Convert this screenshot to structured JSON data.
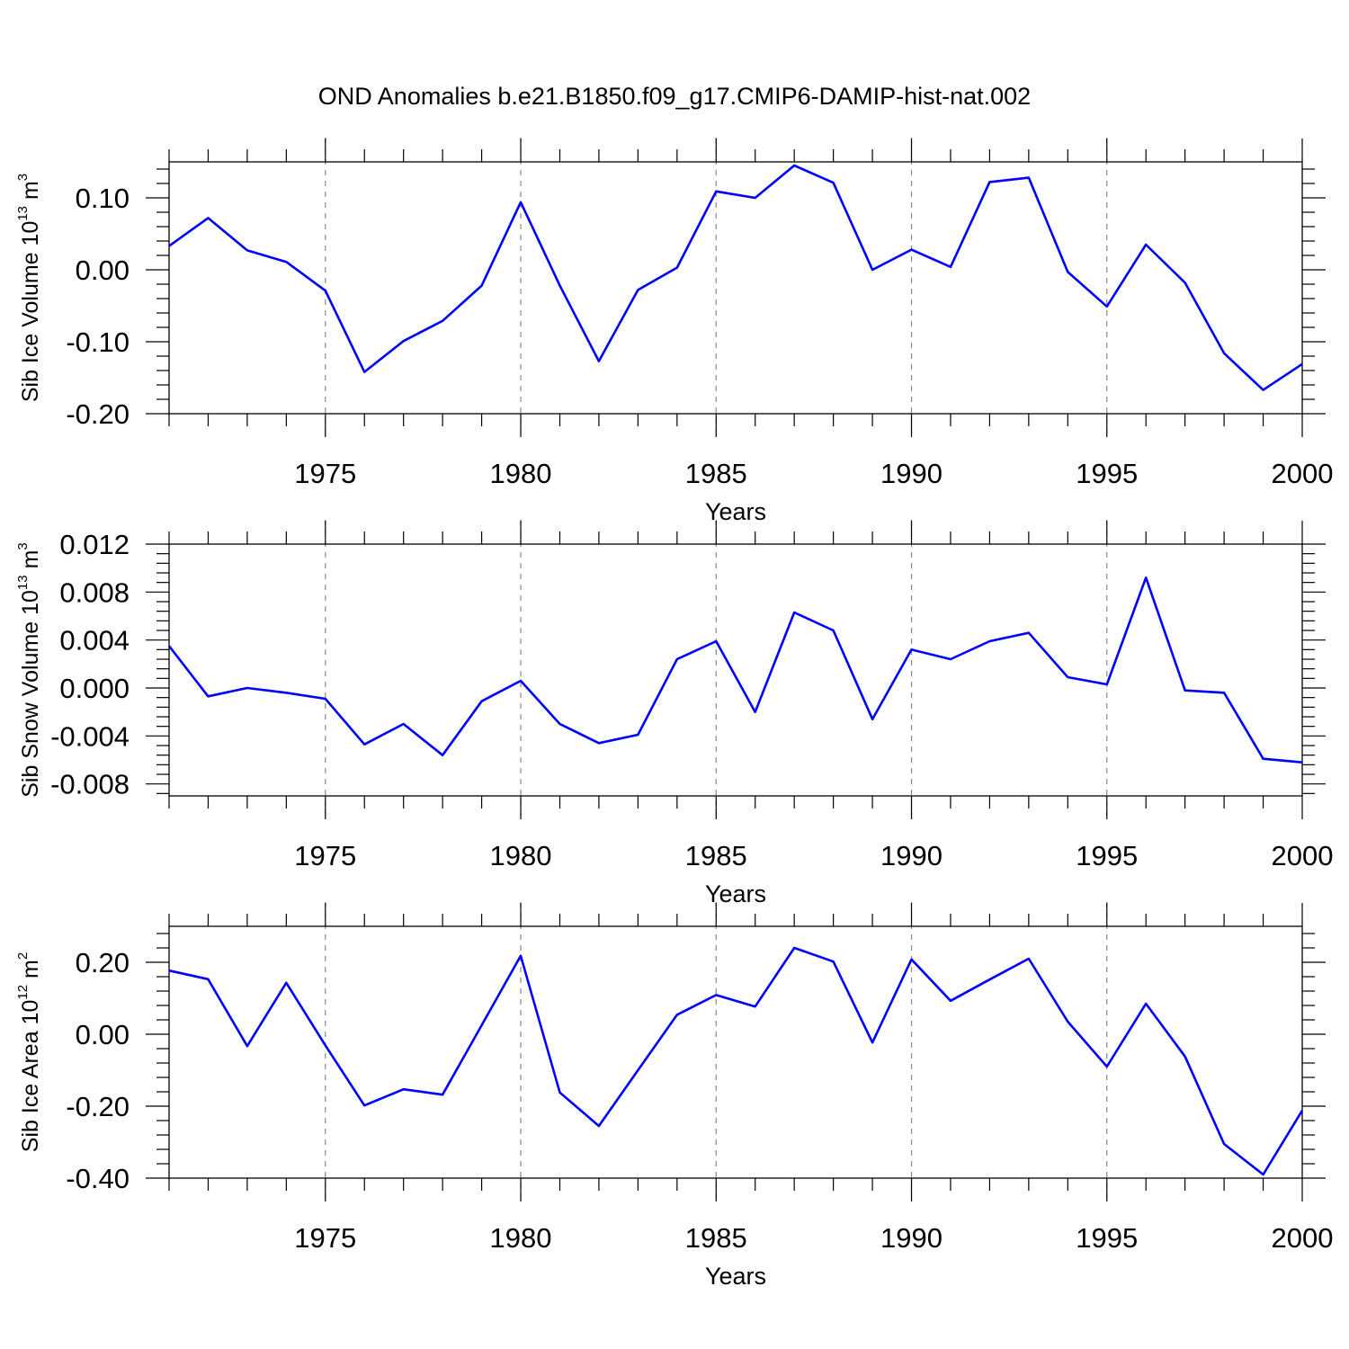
{
  "chart_data": [
    {
      "type": "line",
      "title": "OND Anomalies b.e21.B1850.f09_g17.CMIP6-DAMIP-hist-nat.002",
      "xlabel": "Years",
      "ylabel": "Sib Ice Volume 10",
      "ylabel_exp": "13",
      "ylabel_unit": " m",
      "ylabel_unit_exp": "3",
      "xlim": [
        1971,
        2000
      ],
      "ylim": [
        -0.2,
        0.15
      ],
      "x_ticks": [
        1975,
        1980,
        1985,
        1990,
        1995,
        2000
      ],
      "x_tick_labels": [
        "1975",
        "1980",
        "1985",
        "1990",
        "1995",
        "2000"
      ],
      "y_ticks": [
        0.1,
        0.0,
        -0.1,
        -0.2
      ],
      "y_tick_labels": [
        "0.10",
        "0.00",
        "-0.10",
        "-0.20"
      ],
      "grid": "x dashed",
      "color": "#0000ff",
      "x": [
        1971,
        1972,
        1973,
        1974,
        1975,
        1976,
        1977,
        1978,
        1979,
        1980,
        1981,
        1982,
        1983,
        1984,
        1985,
        1986,
        1987,
        1988,
        1989,
        1990,
        1991,
        1992,
        1993,
        1994,
        1995,
        1996,
        1997,
        1998,
        1999,
        2000
      ],
      "values": [
        0.033,
        0.072,
        0.027,
        0.011,
        -0.029,
        -0.142,
        -0.099,
        -0.071,
        -0.022,
        0.094,
        -0.022,
        -0.127,
        -0.028,
        0.003,
        0.109,
        0.1,
        0.145,
        0.121,
        0.0,
        0.028,
        0.004,
        0.122,
        0.128,
        -0.003,
        -0.051,
        0.035,
        -0.018,
        -0.116,
        -0.167,
        -0.131
      ]
    },
    {
      "type": "line",
      "xlabel": "Years",
      "ylabel": "Sib Snow Volume 10",
      "ylabel_exp": "13",
      "ylabel_unit": " m",
      "ylabel_unit_exp": "3",
      "xlim": [
        1971,
        2000
      ],
      "ylim": [
        -0.009,
        0.012
      ],
      "x_ticks": [
        1975,
        1980,
        1985,
        1990,
        1995,
        2000
      ],
      "x_tick_labels": [
        "1975",
        "1980",
        "1985",
        "1990",
        "1995",
        "2000"
      ],
      "y_ticks": [
        0.012,
        0.008,
        0.004,
        0.0,
        -0.004,
        -0.008
      ],
      "y_tick_labels": [
        "0.012",
        "0.008",
        "0.004",
        "0.000",
        "-0.004",
        "-0.008"
      ],
      "grid": "x dashed",
      "color": "#0000ff",
      "x": [
        1971,
        1972,
        1973,
        1974,
        1975,
        1976,
        1977,
        1978,
        1979,
        1980,
        1981,
        1982,
        1983,
        1984,
        1985,
        1986,
        1987,
        1988,
        1989,
        1990,
        1991,
        1992,
        1993,
        1994,
        1995,
        1996,
        1997,
        1998,
        1999,
        2000
      ],
      "values": [
        0.0035,
        -0.0007,
        0.0,
        -0.0004,
        -0.0009,
        -0.0047,
        -0.003,
        -0.0056,
        -0.0011,
        0.0006,
        -0.003,
        -0.0046,
        -0.0039,
        0.0024,
        0.0039,
        -0.002,
        0.0063,
        0.0048,
        -0.0026,
        0.0032,
        0.0024,
        0.0039,
        0.0046,
        0.0009,
        0.0003,
        0.0092,
        -0.0002,
        -0.0004,
        -0.0059,
        -0.0062
      ]
    },
    {
      "type": "line",
      "xlabel": "Years",
      "ylabel": "Sib Ice Area 10",
      "ylabel_exp": "12",
      "ylabel_unit": " m",
      "ylabel_unit_exp": "2",
      "xlim": [
        1971,
        2000
      ],
      "ylim": [
        -0.4,
        0.3
      ],
      "x_ticks": [
        1975,
        1980,
        1985,
        1990,
        1995,
        2000
      ],
      "x_tick_labels": [
        "1975",
        "1980",
        "1985",
        "1990",
        "1995",
        "2000"
      ],
      "y_ticks": [
        0.2,
        0.0,
        -0.2,
        -0.4
      ],
      "y_tick_labels": [
        "0.20",
        "0.00",
        "-0.20",
        "-0.40"
      ],
      "grid": "x dashed",
      "color": "#0000ff",
      "x": [
        1971,
        1972,
        1973,
        1974,
        1975,
        1976,
        1977,
        1978,
        1979,
        1980,
        1981,
        1982,
        1983,
        1984,
        1985,
        1986,
        1987,
        1988,
        1989,
        1990,
        1991,
        1992,
        1993,
        1994,
        1995,
        1996,
        1997,
        1998,
        1999,
        2000
      ],
      "values": [
        0.177,
        0.153,
        -0.033,
        0.143,
        -0.031,
        -0.198,
        -0.153,
        -0.168,
        0.025,
        0.218,
        -0.162,
        -0.255,
        -0.1,
        0.054,
        0.109,
        0.077,
        0.24,
        0.202,
        -0.023,
        0.208,
        0.093,
        0.152,
        0.21,
        0.035,
        -0.09,
        0.085,
        -0.062,
        -0.305,
        -0.39,
        -0.212
      ]
    }
  ]
}
